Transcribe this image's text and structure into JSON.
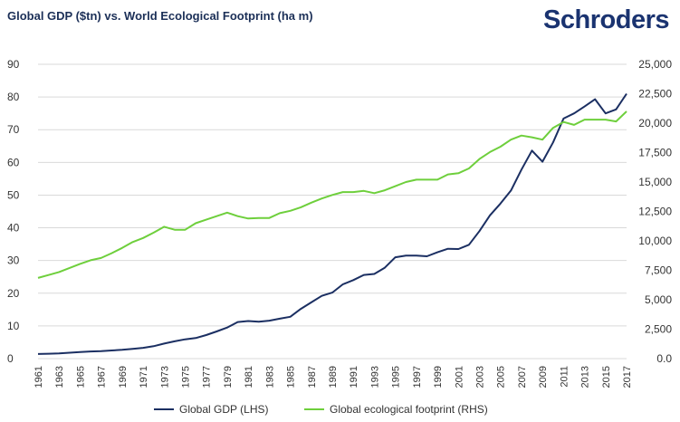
{
  "header": {
    "title": "Global GDP ($tn) vs. World Ecological Footprint (ha m)",
    "brand": "Schroders"
  },
  "colors": {
    "gdp": "#1b2f62",
    "footprint": "#6ecf3c",
    "grid": "#d9d9d9",
    "title": "#1b2f57"
  },
  "chart_data": {
    "type": "line",
    "title": "Global GDP ($tn) vs. World Ecological Footprint (ha m)",
    "xlim": [
      1961,
      2017
    ],
    "left_axis": {
      "ylim": [
        0,
        90
      ],
      "ticks": [
        "0",
        "10",
        "20",
        "30",
        "40",
        "50",
        "60",
        "70",
        "80",
        "90"
      ]
    },
    "right_axis": {
      "ylim": [
        0,
        25000
      ],
      "ticks": [
        "0.0",
        "2,500",
        "5,000",
        "7,500",
        "10,000",
        "12,500",
        "15,000",
        "17,500",
        "20,000",
        "22,500",
        "25,000"
      ]
    },
    "x_tick_labels": [
      "1961",
      "1963",
      "1965",
      "1967",
      "1969",
      "1971",
      "1973",
      "1975",
      "1977",
      "1979",
      "1981",
      "1983",
      "1985",
      "1987",
      "1989",
      "1991",
      "1993",
      "1995",
      "1997",
      "1999",
      "2001",
      "2003",
      "2005",
      "2007",
      "2009",
      "2011",
      "2013",
      "2015",
      "2017"
    ],
    "grid": true,
    "legend_position": "bottom",
    "series": [
      {
        "name": "Global GDP (LHS)",
        "axis": "left",
        "x": [
          1961,
          1962,
          1963,
          1964,
          1965,
          1966,
          1967,
          1968,
          1969,
          1970,
          1971,
          1972,
          1973,
          1974,
          1975,
          1976,
          1977,
          1978,
          1979,
          1980,
          1981,
          1982,
          1983,
          1984,
          1985,
          1986,
          1987,
          1988,
          1989,
          1990,
          1991,
          1992,
          1993,
          1994,
          1995,
          1996,
          1997,
          1998,
          1999,
          2000,
          2001,
          2002,
          2003,
          2004,
          2005,
          2006,
          2007,
          2008,
          2009,
          2010,
          2011,
          2012,
          2013,
          2014,
          2015,
          2016,
          2017
        ],
        "values": [
          1.4,
          1.5,
          1.6,
          1.8,
          2.0,
          2.2,
          2.3,
          2.5,
          2.7,
          3.0,
          3.3,
          3.8,
          4.6,
          5.3,
          5.9,
          6.3,
          7.2,
          8.3,
          9.5,
          11.2,
          11.5,
          11.3,
          11.6,
          12.2,
          12.8,
          15.2,
          17.2,
          19.2,
          20.2,
          22.7,
          24.0,
          25.6,
          25.9,
          27.8,
          31.0,
          31.5,
          31.5,
          31.3,
          32.5,
          33.6,
          33.5,
          34.8,
          39.0,
          43.8,
          47.4,
          51.4,
          57.8,
          63.6,
          60.2,
          66.1,
          73.4,
          75.0,
          77.1,
          79.3,
          75.0,
          76.2,
          81.0
        ]
      },
      {
        "name": "Global ecological footprint (RHS)",
        "axis": "right",
        "x": [
          1961,
          1962,
          1963,
          1964,
          1965,
          1966,
          1967,
          1968,
          1969,
          1970,
          1971,
          1972,
          1973,
          1974,
          1975,
          1976,
          1977,
          1978,
          1979,
          1980,
          1981,
          1982,
          1983,
          1984,
          1985,
          1986,
          1987,
          1988,
          1989,
          1990,
          1991,
          1992,
          1993,
          1994,
          1995,
          1996,
          1997,
          1998,
          1999,
          2000,
          2001,
          2002,
          2003,
          2004,
          2005,
          2006,
          2007,
          2008,
          2009,
          2010,
          2011,
          2012,
          2013,
          2014,
          2015,
          2016,
          2017
        ],
        "values": [
          6850,
          7100,
          7350,
          7700,
          8050,
          8350,
          8550,
          8950,
          9400,
          9900,
          10250,
          10700,
          11200,
          10950,
          10950,
          11500,
          11800,
          12100,
          12400,
          12100,
          11900,
          11950,
          11950,
          12350,
          12550,
          12850,
          13250,
          13600,
          13900,
          14150,
          14150,
          14250,
          14050,
          14300,
          14650,
          15000,
          15200,
          15200,
          15200,
          15650,
          15750,
          16150,
          16950,
          17550,
          18000,
          18600,
          18950,
          18800,
          18600,
          19600,
          20100,
          19850,
          20300,
          20300,
          20300,
          20150,
          21000
        ]
      }
    ]
  }
}
